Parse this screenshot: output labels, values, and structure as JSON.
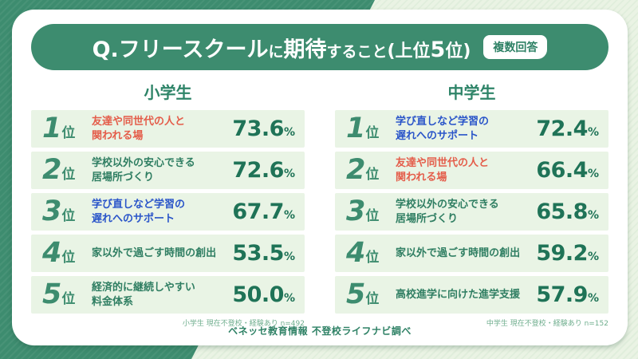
{
  "header": {
    "title_parts": [
      {
        "text": "Q. "
      },
      {
        "text": "フリースクール"
      },
      {
        "text": "に"
      },
      {
        "text": "期待"
      },
      {
        "text": "すること"
      },
      {
        "text": "(上位"
      },
      {
        "text": "5"
      },
      {
        "text": "位)"
      }
    ],
    "badge": "複数回答"
  },
  "chart_data": [
    {
      "type": "table",
      "title": "小学生",
      "rows": [
        {
          "rank": "1",
          "rank_suffix": "位",
          "label": "友達や同世代の人と\n関われる場",
          "value": "73.6",
          "unit": "%",
          "color": "red"
        },
        {
          "rank": "2",
          "rank_suffix": "位",
          "label": "学校以外の安心できる\n居場所づくり",
          "value": "72.6",
          "unit": "%",
          "color": "green"
        },
        {
          "rank": "3",
          "rank_suffix": "位",
          "label": "学び直しなど学習の\n遅れへのサポート",
          "value": "67.7",
          "unit": "%",
          "color": "blue"
        },
        {
          "rank": "4",
          "rank_suffix": "位",
          "label": "家以外で過ごす時間の創出",
          "value": "53.5",
          "unit": "%",
          "color": "green"
        },
        {
          "rank": "5",
          "rank_suffix": "位",
          "label": "経済的に継続しやすい\n料金体系",
          "value": "50.0",
          "unit": "%",
          "color": "green"
        }
      ],
      "note": "小学生 現在不登校・経験あり n=492"
    },
    {
      "type": "table",
      "title": "中学生",
      "rows": [
        {
          "rank": "1",
          "rank_suffix": "位",
          "label": "学び直しなど学習の\n遅れへのサポート",
          "value": "72.4",
          "unit": "%",
          "color": "blue"
        },
        {
          "rank": "2",
          "rank_suffix": "位",
          "label": "友達や同世代の人と\n関われる場",
          "value": "66.4",
          "unit": "%",
          "color": "red"
        },
        {
          "rank": "3",
          "rank_suffix": "位",
          "label": "学校以外の安心できる\n居場所づくり",
          "value": "65.8",
          "unit": "%",
          "color": "green"
        },
        {
          "rank": "4",
          "rank_suffix": "位",
          "label": "家以外で過ごす時間の創出",
          "value": "59.2",
          "unit": "%",
          "color": "green"
        },
        {
          "rank": "5",
          "rank_suffix": "位",
          "label": "高校進学に向けた進学支援",
          "value": "57.9",
          "unit": "%",
          "color": "green"
        }
      ],
      "note": "中学生 現在不登校・経験あり n=152"
    }
  ],
  "source": "ベネッセ教育情報 不登校ライフナビ調べ",
  "colors": {
    "header_green": "#3d8c6f",
    "light_bg": "#eaf3e4",
    "row_bg": "#e9f4e5",
    "percent_green": "#1f7357",
    "label_red": "#e45d4a",
    "label_blue": "#2a55c9",
    "label_green": "#2f7e62"
  }
}
